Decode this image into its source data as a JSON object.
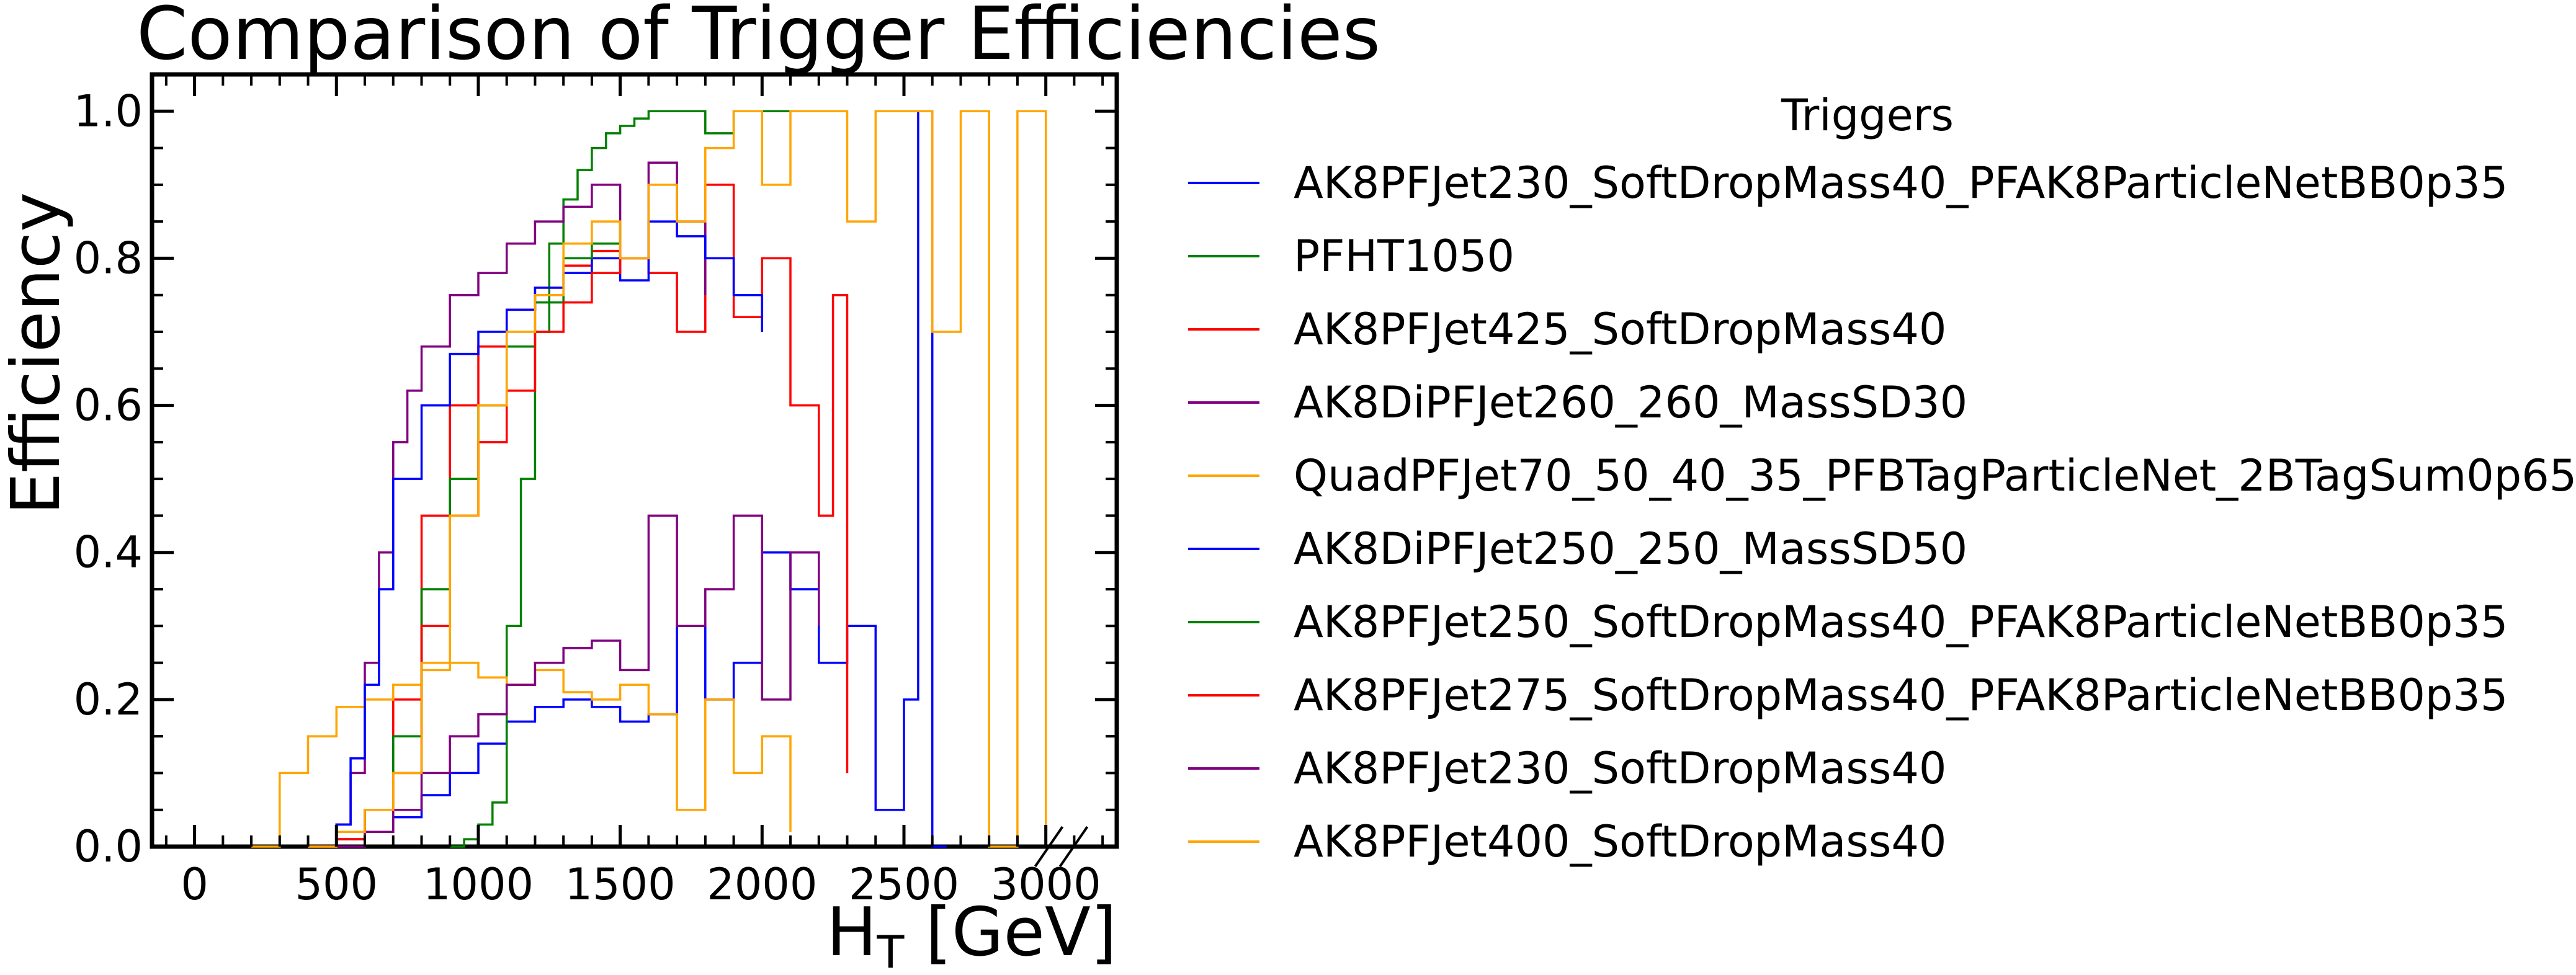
{
  "chart_data": {
    "type": "line",
    "title": "Comparison of Trigger Efficiencies",
    "xlabel": "H_T [GeV]",
    "xlabel_main": "H",
    "xlabel_sub": "T",
    "xlabel_rest": " [GeV]",
    "ylabel": "Efficiency",
    "xlim": [
      -150,
      3250
    ],
    "ylim": [
      0,
      1.05
    ],
    "x_ticks": [
      0,
      500,
      1000,
      1500,
      2000,
      2500,
      3000
    ],
    "x_tick_labels": [
      "0",
      "500",
      "1000",
      "1500",
      "2000",
      "2500",
      "3000"
    ],
    "y_ticks": [
      0.0,
      0.2,
      0.4,
      0.6,
      0.8,
      1.0
    ],
    "y_tick_labels": [
      "0.0",
      "0.2",
      "0.4",
      "0.6",
      "0.8",
      "1.0"
    ],
    "grid": false,
    "axis_break_at": 3050,
    "legend": {
      "title": "Triggers",
      "position": "right-outside"
    },
    "step_histogram": true,
    "series": [
      {
        "name": "AK8PFJet230_SoftDropMass40_PFAK8ParticleNetBB0p35",
        "color": "#0000ff",
        "x": [
          400,
          500,
          600,
          700,
          800,
          900,
          1000,
          1100,
          1200,
          1300,
          1400,
          1500,
          1600,
          1700,
          1800,
          1900,
          2000,
          2100,
          2200,
          2300,
          2400,
          2500,
          2550,
          2600,
          2650
        ],
        "y": [
          0.0,
          0.01,
          0.02,
          0.04,
          0.07,
          0.1,
          0.14,
          0.17,
          0.19,
          0.2,
          0.19,
          0.17,
          0.18,
          0.3,
          0.2,
          0.25,
          0.4,
          0.35,
          0.25,
          0.3,
          0.05,
          0.2,
          1.0,
          0.0,
          0.0
        ]
      },
      {
        "name": "PFHT1050",
        "color": "#008000",
        "x": [
          900,
          950,
          1000,
          1050,
          1100,
          1150,
          1200,
          1250,
          1300,
          1350,
          1400,
          1450,
          1500,
          1550,
          1600,
          1700,
          1800,
          1900,
          2000,
          2100,
          2200
        ],
        "y": [
          0.0,
          0.01,
          0.03,
          0.06,
          0.3,
          0.5,
          0.7,
          0.82,
          0.88,
          0.92,
          0.95,
          0.97,
          0.98,
          0.99,
          1.0,
          1.0,
          0.97,
          1.0,
          1.0,
          1.0,
          1.0
        ]
      },
      {
        "name": "AK8PFJet425_SoftDropMass40",
        "color": "#ff0000",
        "x": [
          400,
          500,
          600,
          700,
          800,
          900,
          1000,
          1100,
          1200,
          1300,
          1400,
          1500,
          1600,
          1700,
          1800,
          1900,
          2000,
          2100,
          2200,
          2250,
          2300
        ],
        "y": [
          0.0,
          0.01,
          0.05,
          0.2,
          0.45,
          0.6,
          0.68,
          0.73,
          0.76,
          0.79,
          0.81,
          0.8,
          0.78,
          0.7,
          0.9,
          0.72,
          0.8,
          0.6,
          0.45,
          0.75,
          0.1
        ]
      },
      {
        "name": "AK8DiPFJet260_260_MassSD30",
        "color": "#800080",
        "x": [
          400,
          500,
          550,
          600,
          650,
          700,
          750,
          800,
          900,
          1000,
          1100,
          1200,
          1300,
          1400,
          1500,
          1600,
          1700,
          1800
        ],
        "y": [
          0.0,
          0.03,
          0.1,
          0.25,
          0.4,
          0.55,
          0.62,
          0.68,
          0.75,
          0.78,
          0.82,
          0.85,
          0.87,
          0.9,
          0.8,
          0.93,
          0.85,
          0.75
        ]
      },
      {
        "name": "QuadPFJet70_50_40_35_PFBTagParticleNet_2BTagSum0p65",
        "color": "#ffa500",
        "x": [
          200,
          300,
          400,
          500,
          600,
          700,
          800,
          900,
          1000,
          1100,
          1200,
          1300,
          1400,
          1500,
          1600,
          1700,
          1800,
          1900,
          2000,
          2100
        ],
        "y": [
          0.0,
          0.1,
          0.15,
          0.19,
          0.2,
          0.22,
          0.24,
          0.25,
          0.23,
          0.22,
          0.24,
          0.21,
          0.2,
          0.22,
          0.18,
          0.05,
          0.2,
          0.1,
          0.15,
          0.02
        ]
      },
      {
        "name": "AK8DiPFJet250_250_MassSD50",
        "color": "#0000ff",
        "x": [
          400,
          500,
          550,
          600,
          650,
          700,
          800,
          900,
          1000,
          1100,
          1200,
          1300,
          1400,
          1500,
          1600,
          1700,
          1800,
          1900,
          2000
        ],
        "y": [
          0.0,
          0.03,
          0.12,
          0.22,
          0.35,
          0.5,
          0.6,
          0.67,
          0.7,
          0.73,
          0.76,
          0.78,
          0.8,
          0.77,
          0.85,
          0.83,
          0.8,
          0.75,
          0.7
        ]
      },
      {
        "name": "AK8PFJet250_SoftDropMass40_PFAK8ParticleNetBB0p35",
        "color": "#008000",
        "x": [
          400,
          500,
          600,
          700,
          800,
          900,
          1000,
          1100,
          1200,
          1300,
          1400,
          1500
        ],
        "y": [
          0.0,
          0.01,
          0.05,
          0.15,
          0.35,
          0.5,
          0.6,
          0.68,
          0.74,
          0.8,
          0.82,
          0.85
        ]
      },
      {
        "name": "AK8PFJet275_SoftDropMass40_PFAK8ParticleNetBB0p35",
        "color": "#ff0000",
        "x": [
          400,
          500,
          600,
          700,
          800,
          900,
          1000,
          1100,
          1200,
          1300,
          1400,
          1500
        ],
        "y": [
          0.0,
          0.01,
          0.05,
          0.1,
          0.3,
          0.45,
          0.55,
          0.62,
          0.7,
          0.74,
          0.78,
          0.8
        ]
      },
      {
        "name": "AK8PFJet230_SoftDropMass40",
        "color": "#800080",
        "x": [
          500,
          600,
          700,
          800,
          900,
          1000,
          1100,
          1200,
          1300,
          1400,
          1500,
          1600,
          1700,
          1800,
          1900,
          2000,
          2100,
          2200
        ],
        "y": [
          0.0,
          0.02,
          0.05,
          0.1,
          0.15,
          0.18,
          0.22,
          0.25,
          0.27,
          0.28,
          0.24,
          0.45,
          0.3,
          0.35,
          0.45,
          0.2,
          0.4,
          0.3
        ]
      },
      {
        "name": "AK8PFJet400_SoftDropMass40",
        "color": "#ffa500",
        "x": [
          400,
          500,
          600,
          700,
          800,
          900,
          1000,
          1100,
          1200,
          1300,
          1400,
          1500,
          1600,
          1700,
          1800,
          1900,
          2000,
          2100,
          2200,
          2300,
          2400,
          2500,
          2600,
          2700,
          2800,
          2900,
          3000
        ],
        "y": [
          0.0,
          0.02,
          0.05,
          0.1,
          0.25,
          0.45,
          0.6,
          0.7,
          0.75,
          0.82,
          0.85,
          0.8,
          0.9,
          0.85,
          0.95,
          1.0,
          0.9,
          1.0,
          1.0,
          0.85,
          1.0,
          1.0,
          0.7,
          1.0,
          0.0,
          1.0,
          0.0
        ]
      }
    ]
  }
}
